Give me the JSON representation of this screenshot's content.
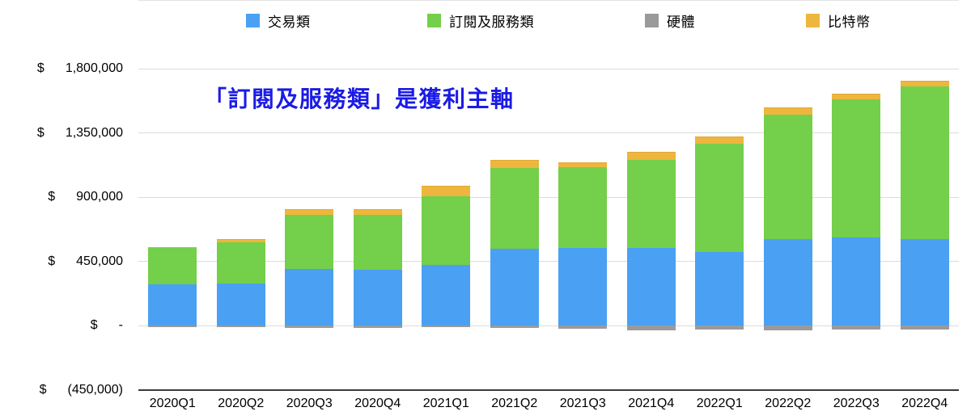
{
  "chart_data": {
    "type": "bar",
    "stacked": true,
    "title": "",
    "annotation": "「訂閱及服務類」是獲利主軸",
    "annotation_color": "#1b1be6",
    "legend_position": "top",
    "grid": true,
    "xlabel": "",
    "ylabel": "",
    "ylim": [
      -450000,
      1800000
    ],
    "categories": [
      "2020Q1",
      "2020Q2",
      "2020Q3",
      "2020Q4",
      "2021Q1",
      "2021Q2",
      "2021Q3",
      "2021Q4",
      "2022Q1",
      "2022Q2",
      "2022Q3",
      "2022Q4"
    ],
    "series": [
      {
        "name": "交易類",
        "color": "#4aa0f3",
        "values": [
          288000,
          292000,
          399000,
          392000,
          427000,
          540000,
          543000,
          546000,
          515000,
          603000,
          618000,
          607000
        ]
      },
      {
        "name": "訂閱及服務類",
        "color": "#74cf4b",
        "values": [
          254000,
          292000,
          377000,
          382000,
          477000,
          565000,
          569000,
          613000,
          761000,
          876000,
          965000,
          1067000
        ]
      },
      {
        "name": "硬體",
        "color": "#9a9a9a",
        "values": [
          -14000,
          -10000,
          -15000,
          -15000,
          -14000,
          -15000,
          -23000,
          -34000,
          -28000,
          -34000,
          -28000,
          -30000
        ]
      },
      {
        "name": "比特幣",
        "color": "#eeb63d",
        "values": [
          6000,
          24000,
          41000,
          42000,
          75000,
          53000,
          34000,
          60000,
          49000,
          51000,
          43000,
          41000
        ]
      }
    ],
    "stack_order_positive": [
      "交易類",
      "訂閱及服務類",
      "比特幣"
    ],
    "negative_series": [
      "硬體"
    ],
    "y_axis": {
      "prefix": "$",
      "ticks": [
        {
          "label": "1,800,000",
          "value": 1800000
        },
        {
          "label": "1,350,000",
          "value": 1350000
        },
        {
          "label": "900,000",
          "value": 900000
        },
        {
          "label": "450,000",
          "value": 450000
        },
        {
          "label": "-",
          "value": 0
        },
        {
          "label": "(450,000)",
          "value": -450000
        }
      ]
    }
  }
}
